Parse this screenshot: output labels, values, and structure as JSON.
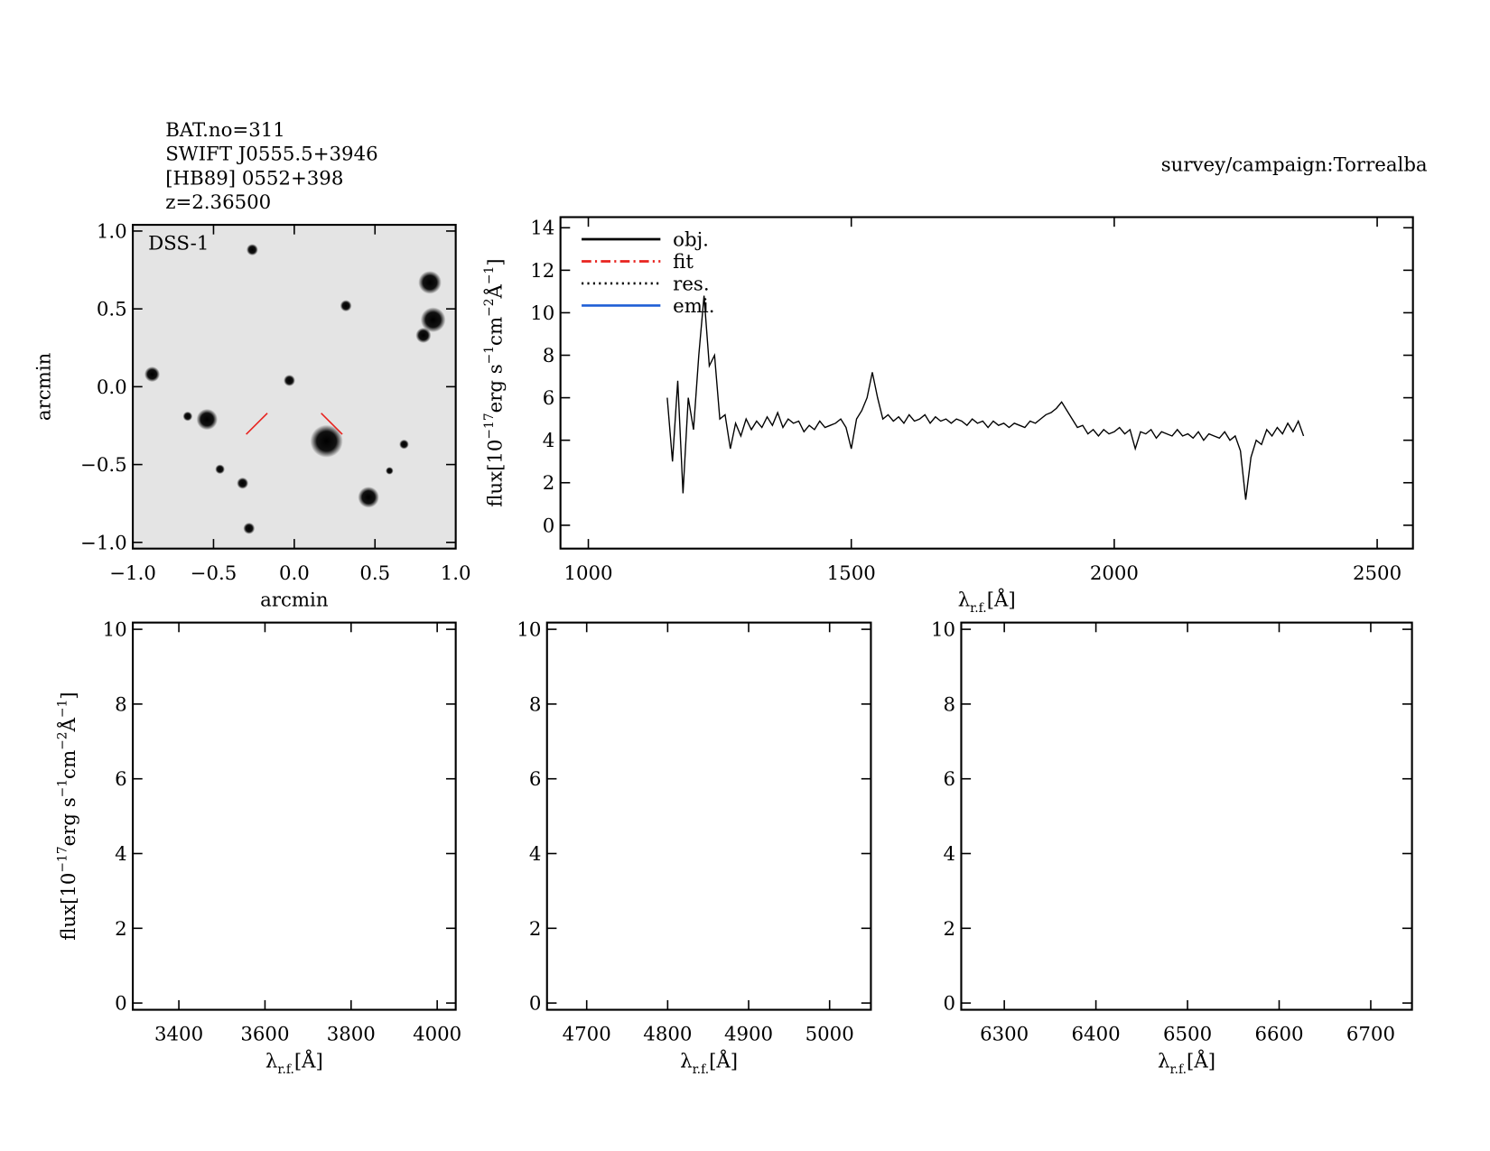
{
  "header": {
    "lines": [
      "BAT.no=311",
      "SWIFT J0555.5+3946",
      "[HB89] 0552+398",
      "z=2.36500"
    ],
    "survey": "survey/campaign:Torrealba"
  },
  "chart_data": [
    {
      "type": "image",
      "label": "DSS-1",
      "xlabel": "arcmin",
      "ylabel": "arcmin",
      "xlim": [
        -1,
        1
      ],
      "ylim": [
        -1.04,
        1.04
      ],
      "xticks": [
        {
          "value": -1,
          "label": "−1.0"
        },
        {
          "value": -0.5,
          "label": "−0.5"
        },
        {
          "value": 0,
          "label": "0.0"
        },
        0.5,
        {
          "value": 1,
          "label": "1.0"
        }
      ],
      "yticks": [
        {
          "value": -1,
          "label": "−1.0"
        },
        {
          "value": -0.5,
          "label": "−0.5"
        },
        {
          "value": 0,
          "label": "0.0"
        },
        0.5,
        {
          "value": 1,
          "label": "1.0"
        }
      ],
      "sources": {
        "x": [
          -0.26,
          0.84,
          0.86,
          0.8,
          0.32,
          -0.88,
          -0.03,
          -0.54,
          -0.66,
          0.2,
          0.68,
          0.46,
          -0.32,
          -0.46,
          -0.28,
          0.59
        ],
        "y": [
          0.88,
          0.67,
          0.43,
          0.33,
          0.52,
          0.08,
          0.04,
          -0.21,
          -0.19,
          -0.35,
          -0.37,
          -0.71,
          -0.62,
          -0.53,
          -0.91,
          -0.54
        ],
        "size": [
          6,
          12,
          13,
          8,
          6,
          8,
          6,
          11,
          5,
          17,
          5,
          11,
          6,
          5,
          6,
          4
        ]
      }
    },
    {
      "type": "line",
      "xlabel": [
        "λ",
        "r.f.",
        "[Å]"
      ],
      "ylabel": [
        "flux[10",
        "−17",
        "erg s",
        "−1",
        "cm",
        "−2",
        "Å",
        "−1",
        "]"
      ],
      "xlim": [
        947,
        2568
      ],
      "ylim": [
        -1.1,
        14.5
      ],
      "xticks": [
        1000,
        1500,
        2000,
        2500
      ],
      "yticks": [
        0,
        2,
        4,
        6,
        8,
        10,
        12,
        14
      ],
      "x": [
        1150,
        1160,
        1170,
        1180,
        1190,
        1200,
        1210,
        1220,
        1230,
        1240,
        1250,
        1260,
        1270,
        1280,
        1290,
        1300,
        1310,
        1320,
        1330,
        1340,
        1350,
        1360,
        1370,
        1380,
        1390,
        1400,
        1410,
        1420,
        1430,
        1440,
        1450,
        1460,
        1470,
        1480,
        1490,
        1500,
        1510,
        1520,
        1530,
        1540,
        1550,
        1560,
        1570,
        1580,
        1590,
        1600,
        1610,
        1620,
        1630,
        1640,
        1650,
        1660,
        1670,
        1680,
        1690,
        1700,
        1710,
        1720,
        1730,
        1740,
        1750,
        1760,
        1770,
        1780,
        1790,
        1800,
        1810,
        1820,
        1830,
        1840,
        1850,
        1860,
        1870,
        1880,
        1890,
        1900,
        1910,
        1920,
        1930,
        1940,
        1950,
        1960,
        1970,
        1980,
        1990,
        2000,
        2010,
        2020,
        2030,
        2040,
        2050,
        2060,
        2070,
        2080,
        2090,
        2100,
        2110,
        2120,
        2130,
        2140,
        2150,
        2160,
        2170,
        2180,
        2190,
        2200,
        2210,
        2220,
        2230,
        2240,
        2250,
        2260,
        2270,
        2280,
        2290,
        2300,
        2310,
        2320,
        2330,
        2340,
        2350,
        2360
      ],
      "series": [
        {
          "name": "obj.",
          "color": "#000000",
          "values": [
            6.0,
            3.0,
            6.8,
            1.5,
            6.0,
            4.5,
            8.0,
            10.8,
            7.5,
            8.0,
            5.0,
            5.2,
            3.6,
            4.8,
            4.2,
            5.0,
            4.5,
            4.9,
            4.6,
            5.1,
            4.7,
            5.3,
            4.6,
            5.0,
            4.8,
            4.9,
            4.4,
            4.7,
            4.5,
            4.9,
            4.6,
            4.7,
            4.8,
            5.0,
            4.6,
            3.6,
            5.0,
            5.4,
            6.0,
            7.2,
            6.0,
            5.0,
            5.2,
            4.9,
            5.1,
            4.8,
            5.2,
            4.9,
            5.0,
            5.2,
            4.8,
            5.1,
            4.9,
            5.0,
            4.8,
            5.0,
            4.9,
            4.7,
            5.0,
            4.8,
            4.9,
            4.6,
            4.9,
            4.7,
            4.8,
            4.6,
            4.8,
            4.7,
            4.6,
            4.9,
            4.8,
            5.0,
            5.2,
            5.3,
            5.5,
            5.8,
            5.4,
            5.0,
            4.6,
            4.7,
            4.3,
            4.5,
            4.2,
            4.5,
            4.3,
            4.4,
            4.6,
            4.3,
            4.5,
            3.6,
            4.4,
            4.3,
            4.5,
            4.1,
            4.4,
            4.3,
            4.2,
            4.5,
            4.2,
            4.3,
            4.1,
            4.4,
            4.0,
            4.3,
            4.2,
            4.1,
            4.4,
            4.0,
            4.2,
            3.5,
            1.2,
            3.2,
            4.0,
            3.8,
            4.5,
            4.2,
            4.6,
            4.3,
            4.8,
            4.4,
            4.9,
            4.2
          ]
        }
      ],
      "other_lines": [
        {
          "name": "fit",
          "color": "#e8231f",
          "dash": "dashdot"
        },
        {
          "name": "res.",
          "color": "#000000",
          "dash": "dotted"
        },
        {
          "name": "emi.",
          "color": "#1f5fd6",
          "dash": "solid"
        }
      ]
    },
    {
      "type": "line",
      "xlabel": [
        "λ",
        "r.f.",
        "[Å]"
      ],
      "ylabel": [
        "flux[10",
        "−17",
        "erg s",
        "−1",
        "cm",
        "−2",
        "Å",
        "−1",
        "]"
      ],
      "xlim": [
        3293,
        4043
      ],
      "ylim": [
        -0.18,
        10.18
      ],
      "xticks": [
        3400,
        3600,
        3800,
        4000
      ],
      "yticks": [
        0,
        2,
        4,
        6,
        8,
        10
      ],
      "series": []
    },
    {
      "type": "line",
      "xlabel": [
        "λ",
        "r.f.",
        "[Å]"
      ],
      "xlim": [
        4651,
        5051
      ],
      "ylim": [
        -0.18,
        10.18
      ],
      "xticks": [
        4700,
        4800,
        4900,
        5000
      ],
      "yticks": [
        0,
        2,
        4,
        6,
        8,
        10
      ],
      "series": []
    },
    {
      "type": "line",
      "xlabel": [
        "λ",
        "r.f.",
        "[Å]"
      ],
      "xlim": [
        6253,
        6745
      ],
      "ylim": [
        -0.18,
        10.18
      ],
      "xticks": [
        6300,
        6400,
        6500,
        6600,
        6700
      ],
      "yticks": [
        0,
        2,
        4,
        6,
        8,
        10
      ],
      "series": []
    }
  ]
}
